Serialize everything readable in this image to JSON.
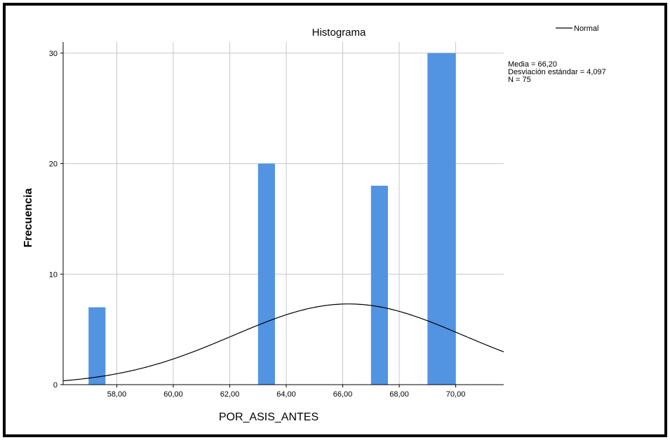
{
  "chart_data": {
    "type": "bar",
    "title": "Histograma",
    "xlabel": "POR_ASIS_ANTES",
    "ylabel": "Frecuencia",
    "xlim": [
      56.1,
      71.7
    ],
    "ylim": [
      0,
      31
    ],
    "x_ticks": [
      "58,00",
      "60,00",
      "62,00",
      "64,00",
      "66,00",
      "68,00",
      "70,00"
    ],
    "x_tick_values": [
      58,
      60,
      62,
      64,
      66,
      68,
      70
    ],
    "y_ticks": [
      "0",
      "10",
      "20",
      "30"
    ],
    "y_tick_values": [
      0,
      10,
      20,
      30
    ],
    "bins": [
      {
        "x0": 57.0,
        "x1": 57.6,
        "count": 7
      },
      {
        "x0": 63.0,
        "x1": 63.6,
        "count": 20
      },
      {
        "x0": 67.0,
        "x1": 67.6,
        "count": 18
      },
      {
        "x0": 69.0,
        "x1": 70.0,
        "count": 30
      }
    ],
    "normal_curve": {
      "mean": 66.2,
      "sd": 4.097,
      "n": 75,
      "bin_width": 1.0
    },
    "legend": {
      "label": "Normal",
      "placement": "top-right"
    },
    "stats": [
      "Media = 66,20",
      "Desviación estándar = 4,097",
      "N = 75"
    ],
    "grid": true,
    "colors": {
      "bar": "#5294e2",
      "grid": "#c8c8c8",
      "curve": "#000000"
    }
  }
}
